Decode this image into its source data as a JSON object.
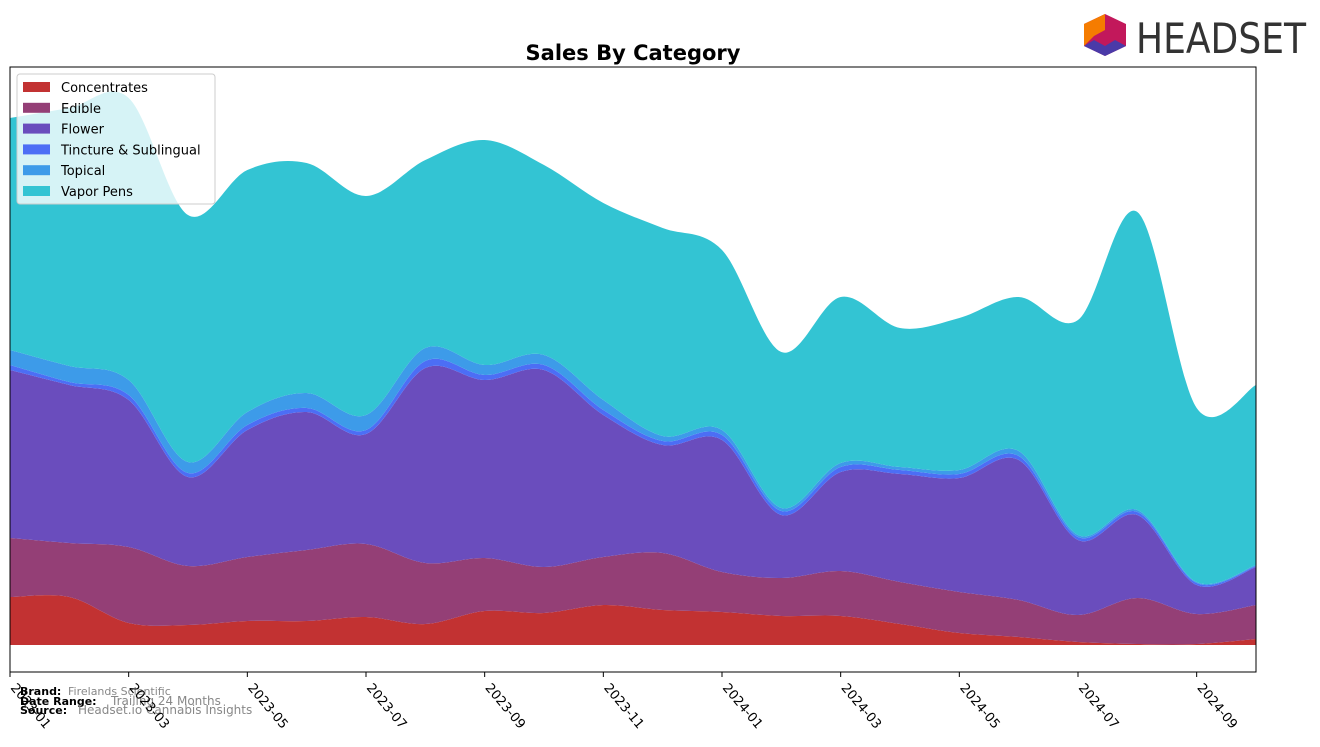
{
  "chart_data": {
    "type": "stacked-area",
    "title": "Sales By Category",
    "logo": "HEADSET",
    "categories": [
      "2023-01",
      null,
      "2023-03",
      null,
      "2023-05",
      null,
      "2023-07",
      null,
      "2023-09",
      null,
      "2023-11",
      null,
      "2024-01",
      null,
      "2024-03",
      null,
      "2024-05",
      null,
      "2024-07",
      null,
      "2024-09",
      null
    ],
    "ylim": [
      -27,
      578
    ],
    "legend": "upper left",
    "series": [
      {
        "name": "Concentrates",
        "color": "#c23232",
        "values": [
          48,
          48,
          22,
          20,
          24,
          24,
          28,
          21,
          34,
          32,
          40,
          35,
          33,
          29,
          29,
          21,
          12,
          8,
          3,
          1,
          1,
          6
        ]
      },
      {
        "name": "Edible",
        "color": "#943f76",
        "values": [
          59,
          54,
          76,
          59,
          64,
          71,
          73,
          61,
          53,
          46,
          48,
          57,
          40,
          38,
          45,
          42,
          41,
          37,
          27,
          46,
          30,
          34
        ]
      },
      {
        "name": "Flower",
        "color": "#6a4dbd",
        "values": [
          168,
          158,
          147,
          89,
          127,
          138,
          110,
          195,
          178,
          197,
          142,
          108,
          132,
          63,
          99,
          108,
          114,
          140,
          75,
          83,
          29,
          38
        ]
      },
      {
        "name": "Tincture & Sublingual",
        "color": "#4c6ef5",
        "values": [
          5,
          3,
          5,
          4,
          5,
          4,
          4,
          7,
          5,
          5,
          5,
          4,
          5,
          4,
          5,
          4,
          4,
          4,
          3,
          3,
          2,
          1
        ]
      },
      {
        "name": "Topical",
        "color": "#3d9be9",
        "values": [
          15,
          16,
          15,
          11,
          13,
          15,
          15,
          13,
          10,
          10,
          10,
          5,
          5,
          3,
          4,
          3,
          4,
          5,
          2,
          2,
          1,
          1
        ]
      },
      {
        "name": "Vapor Pens",
        "color": "#33c4d3",
        "values": [
          232,
          258,
          282,
          247,
          242,
          230,
          219,
          188,
          225,
          190,
          197,
          208,
          180,
          156,
          166,
          139,
          152,
          154,
          215,
          298,
          174,
          180
        ]
      }
    ],
    "footer": {
      "brand_label": "Brand:",
      "brand": "Firelands Scientific",
      "range_label": "Date Range:",
      "range": "Trailing 24 Months",
      "source_label": "Source:",
      "source": "Headset.io Cannabis Insights"
    }
  }
}
